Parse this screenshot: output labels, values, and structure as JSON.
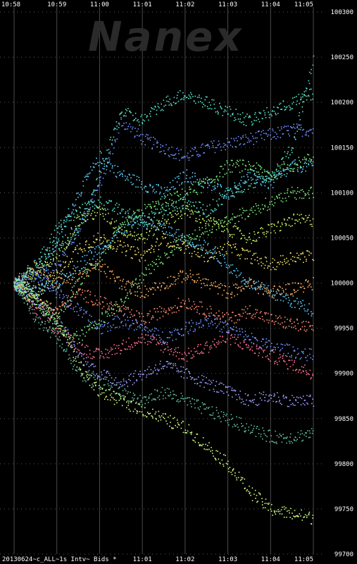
{
  "watermark": "Nanex",
  "footer_label": "20130624~c_ALL~1s Intv~ Bids *",
  "chart_data": {
    "type": "scatter",
    "title": "",
    "xlabel": "",
    "ylabel": "",
    "ylim": [
      99700,
      100300
    ],
    "xlim": [
      "10:58",
      "11:05"
    ],
    "grid": true,
    "x_ticks_top": [
      "10:58",
      "10:59",
      "11:00",
      "11:01",
      "11:02",
      "11:03",
      "11:04",
      "11:05"
    ],
    "x_ticks_bottom": [
      "11:01",
      "11:02",
      "11:03",
      "11:04",
      "11:05"
    ],
    "y_ticks": [
      99700,
      99750,
      99800,
      99850,
      99900,
      99950,
      100000,
      100050,
      100100,
      100150,
      100200,
      100250,
      100300
    ],
    "colors": [
      "#6f8fff",
      "#5ad0ff",
      "#56e6c8",
      "#7cf07c",
      "#c8f060",
      "#f0e060",
      "#ffb060",
      "#ff8a70",
      "#ff7090",
      "#a0a0ff",
      "#60c0a0",
      "#d0ff80"
    ],
    "series": [
      {
        "values": [
          [
            0,
            100000
          ],
          [
            0.5,
            100010
          ],
          [
            1,
            100020
          ],
          [
            1.5,
            100060
          ],
          [
            2,
            100110
          ],
          [
            2.5,
            100180
          ],
          [
            3,
            100160
          ],
          [
            3.5,
            100150
          ],
          [
            4,
            100140
          ],
          [
            4.5,
            100150
          ],
          [
            5,
            100155
          ],
          [
            5.5,
            100160
          ],
          [
            6,
            100165
          ],
          [
            6.5,
            100170
          ],
          [
            7,
            100170
          ]
        ]
      },
      {
        "values": [
          [
            0,
            100000
          ],
          [
            0.5,
            99990
          ],
          [
            1,
            100050
          ],
          [
            1.5,
            100100
          ],
          [
            2,
            100140
          ],
          [
            2.5,
            100120
          ],
          [
            3,
            100110
          ],
          [
            3.5,
            100100
          ],
          [
            4,
            100120
          ],
          [
            4.5,
            100110
          ],
          [
            5,
            100100
          ],
          [
            5.5,
            100120
          ],
          [
            6,
            100110
          ],
          [
            6.5,
            100130
          ],
          [
            7,
            100130
          ]
        ]
      },
      {
        "values": [
          [
            0,
            100000
          ],
          [
            0.5,
            100020
          ],
          [
            1,
            100060
          ],
          [
            1.5,
            100080
          ],
          [
            2,
            100090
          ],
          [
            2.5,
            100080
          ],
          [
            3,
            100070
          ],
          [
            3.5,
            100080
          ],
          [
            4,
            100090
          ],
          [
            4.5,
            100080
          ],
          [
            5,
            100100
          ],
          [
            5.5,
            100110
          ],
          [
            6,
            100120
          ],
          [
            6.5,
            100150
          ],
          [
            7,
            100250
          ]
        ]
      },
      {
        "values": [
          [
            0,
            100000
          ],
          [
            0.5,
            99980
          ],
          [
            1,
            99960
          ],
          [
            1.5,
            100000
          ],
          [
            2,
            100030
          ],
          [
            2.5,
            100060
          ],
          [
            3,
            100080
          ],
          [
            3.5,
            100090
          ],
          [
            4,
            100100
          ],
          [
            4.5,
            100110
          ],
          [
            5,
            100130
          ],
          [
            5.5,
            100130
          ],
          [
            6,
            100120
          ],
          [
            6.5,
            100130
          ],
          [
            7,
            100140
          ]
        ]
      },
      {
        "values": [
          [
            0,
            100000
          ],
          [
            0.5,
            100010
          ],
          [
            1,
            100030
          ],
          [
            1.5,
            100070
          ],
          [
            2,
            100080
          ],
          [
            2.5,
            100060
          ],
          [
            3,
            100050
          ],
          [
            3.5,
            100070
          ],
          [
            4,
            100080
          ],
          [
            4.5,
            100070
          ],
          [
            5,
            100060
          ],
          [
            5.5,
            100050
          ],
          [
            6,
            100060
          ],
          [
            6.5,
            100070
          ],
          [
            7,
            100070
          ]
        ]
      },
      {
        "values": [
          [
            0,
            100000
          ],
          [
            0.5,
            99990
          ],
          [
            1,
            100010
          ],
          [
            1.5,
            100040
          ],
          [
            2,
            100050
          ],
          [
            2.5,
            100040
          ],
          [
            3,
            100030
          ],
          [
            3.5,
            100050
          ],
          [
            4,
            100040
          ],
          [
            4.5,
            100030
          ],
          [
            5,
            100040
          ],
          [
            5.5,
            100030
          ],
          [
            6,
            100020
          ],
          [
            6.5,
            100030
          ],
          [
            7,
            100030
          ]
        ]
      },
      {
        "values": [
          [
            0,
            100000
          ],
          [
            0.5,
            100020
          ],
          [
            1,
            100000
          ],
          [
            1.5,
            100010
          ],
          [
            2,
            100020
          ],
          [
            2.5,
            100000
          ],
          [
            3,
            99990
          ],
          [
            3.5,
            100000
          ],
          [
            4,
            100010
          ],
          [
            4.5,
            100000
          ],
          [
            5,
            99990
          ],
          [
            5.5,
            100000
          ],
          [
            6,
            99990
          ],
          [
            6.5,
            99995
          ],
          [
            7,
            100000
          ]
        ]
      },
      {
        "values": [
          [
            0,
            100000
          ],
          [
            0.5,
            99980
          ],
          [
            1,
            99970
          ],
          [
            1.5,
            99990
          ],
          [
            2,
            99980
          ],
          [
            2.5,
            99970
          ],
          [
            3,
            99960
          ],
          [
            3.5,
            99970
          ],
          [
            4,
            99980
          ],
          [
            4.5,
            99970
          ],
          [
            5,
            99960
          ],
          [
            5.5,
            99970
          ],
          [
            6,
            99960
          ],
          [
            6.5,
            99955
          ],
          [
            7,
            99950
          ]
        ]
      },
      {
        "values": [
          [
            0,
            100000
          ],
          [
            0.5,
            99970
          ],
          [
            1,
            99950
          ],
          [
            1.5,
            99930
          ],
          [
            2,
            99920
          ],
          [
            2.5,
            99930
          ],
          [
            3,
            99940
          ],
          [
            3.5,
            99930
          ],
          [
            4,
            99920
          ],
          [
            4.5,
            99930
          ],
          [
            5,
            99940
          ],
          [
            5.5,
            99930
          ],
          [
            6,
            99920
          ],
          [
            6.5,
            99910
          ],
          [
            7,
            99900
          ]
        ]
      },
      {
        "values": [
          [
            0,
            100000
          ],
          [
            0.5,
            99980
          ],
          [
            1,
            99960
          ],
          [
            1.5,
            99920
          ],
          [
            2,
            99900
          ],
          [
            2.5,
            99890
          ],
          [
            3,
            99900
          ],
          [
            3.5,
            99910
          ],
          [
            4,
            99900
          ],
          [
            4.5,
            99890
          ],
          [
            5,
            99880
          ],
          [
            5.5,
            99870
          ],
          [
            6,
            99875
          ],
          [
            6.5,
            99870
          ],
          [
            7,
            99870
          ]
        ]
      },
      {
        "values": [
          [
            0,
            100000
          ],
          [
            0.5,
            99960
          ],
          [
            1,
            99940
          ],
          [
            1.5,
            99900
          ],
          [
            2,
            99890
          ],
          [
            2.5,
            99880
          ],
          [
            3,
            99870
          ],
          [
            3.5,
            99880
          ],
          [
            4,
            99870
          ],
          [
            4.5,
            99860
          ],
          [
            5,
            99850
          ],
          [
            5.5,
            99840
          ],
          [
            6,
            99830
          ],
          [
            6.5,
            99830
          ],
          [
            7,
            99835
          ]
        ]
      },
      {
        "values": [
          [
            0,
            100000
          ],
          [
            0.5,
            99990
          ],
          [
            1,
            99960
          ],
          [
            1.5,
            99910
          ],
          [
            2,
            99880
          ],
          [
            2.5,
            99870
          ],
          [
            3,
            99860
          ],
          [
            3.5,
            99850
          ],
          [
            4,
            99840
          ],
          [
            4.5,
            99820
          ],
          [
            5,
            99800
          ],
          [
            5.5,
            99770
          ],
          [
            6,
            99750
          ],
          [
            6.5,
            99745
          ],
          [
            7,
            99740
          ]
        ]
      },
      {
        "values": [
          [
            0,
            100000
          ],
          [
            0.5,
            100010
          ],
          [
            1,
            99990
          ],
          [
            1.5,
            99970
          ],
          [
            2,
            99950
          ],
          [
            2.5,
            99960
          ],
          [
            3,
            99950
          ],
          [
            3.5,
            99940
          ],
          [
            4,
            99950
          ],
          [
            4.5,
            99960
          ],
          [
            5,
            99950
          ],
          [
            5.5,
            99940
          ],
          [
            6,
            99930
          ],
          [
            6.5,
            99925
          ],
          [
            7,
            99920
          ]
        ]
      },
      {
        "values": [
          [
            0,
            100000
          ],
          [
            0.5,
            99990
          ],
          [
            1,
            100000
          ],
          [
            1.5,
            100020
          ],
          [
            2,
            100040
          ],
          [
            2.5,
            100060
          ],
          [
            3,
            100070
          ],
          [
            3.5,
            100060
          ],
          [
            4,
            100050
          ],
          [
            4.5,
            100040
          ],
          [
            5,
            100020
          ],
          [
            5.5,
            100000
          ],
          [
            6,
            99990
          ],
          [
            6.5,
            99980
          ],
          [
            7,
            99970
          ]
        ]
      },
      {
        "values": [
          [
            0,
            100000
          ],
          [
            0.5,
            100020
          ],
          [
            1,
            100040
          ],
          [
            1.5,
            100060
          ],
          [
            2,
            100120
          ],
          [
            2.5,
            100190
          ],
          [
            3,
            100180
          ],
          [
            3.5,
            100200
          ],
          [
            4,
            100210
          ],
          [
            4.5,
            100200
          ],
          [
            5,
            100190
          ],
          [
            5.5,
            100180
          ],
          [
            6,
            100190
          ],
          [
            6.5,
            100200
          ],
          [
            7,
            100210
          ]
        ]
      },
      {
        "values": [
          [
            0,
            100000
          ],
          [
            0.5,
            99980
          ],
          [
            1,
            99950
          ],
          [
            1.5,
            99940
          ],
          [
            2,
            99960
          ],
          [
            2.5,
            99980
          ],
          [
            3,
            100010
          ],
          [
            3.5,
            100030
          ],
          [
            4,
            100050
          ],
          [
            4.5,
            100060
          ],
          [
            5,
            100070
          ],
          [
            5.5,
            100080
          ],
          [
            6,
            100090
          ],
          [
            6.5,
            100100
          ],
          [
            7,
            100100
          ]
        ]
      }
    ]
  }
}
